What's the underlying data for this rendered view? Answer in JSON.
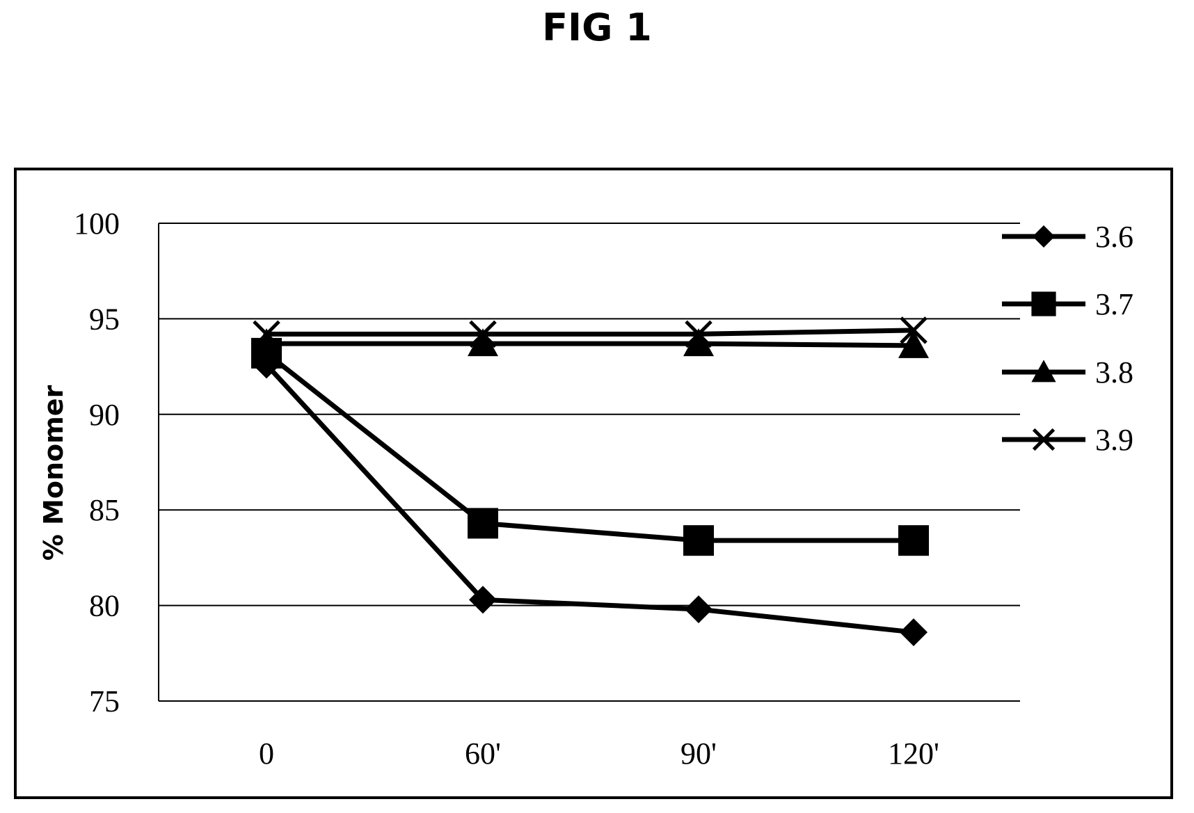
{
  "figure": {
    "title": "FIG 1"
  },
  "chart_data": {
    "type": "line",
    "title": "",
    "xlabel": "",
    "ylabel": "% Monomer",
    "categories": [
      "0",
      "60'",
      "90'",
      "120'"
    ],
    "ylim": [
      75,
      100
    ],
    "yticks": [
      "100",
      "95",
      "90",
      "85",
      "80",
      "75"
    ],
    "grid": true,
    "legend_position": "right",
    "series": [
      {
        "name": "3.6",
        "marker": "diamond",
        "values": [
          92.6,
          80.3,
          79.8,
          78.6
        ]
      },
      {
        "name": "3.7",
        "marker": "square",
        "values": [
          93.2,
          84.3,
          83.4,
          83.4
        ]
      },
      {
        "name": "3.8",
        "marker": "triangle",
        "values": [
          93.7,
          93.7,
          93.7,
          93.6
        ]
      },
      {
        "name": "3.9",
        "marker": "x",
        "values": [
          94.2,
          94.2,
          94.2,
          94.4
        ]
      }
    ],
    "line_color": "#000000",
    "background_color": "#ffffff"
  }
}
